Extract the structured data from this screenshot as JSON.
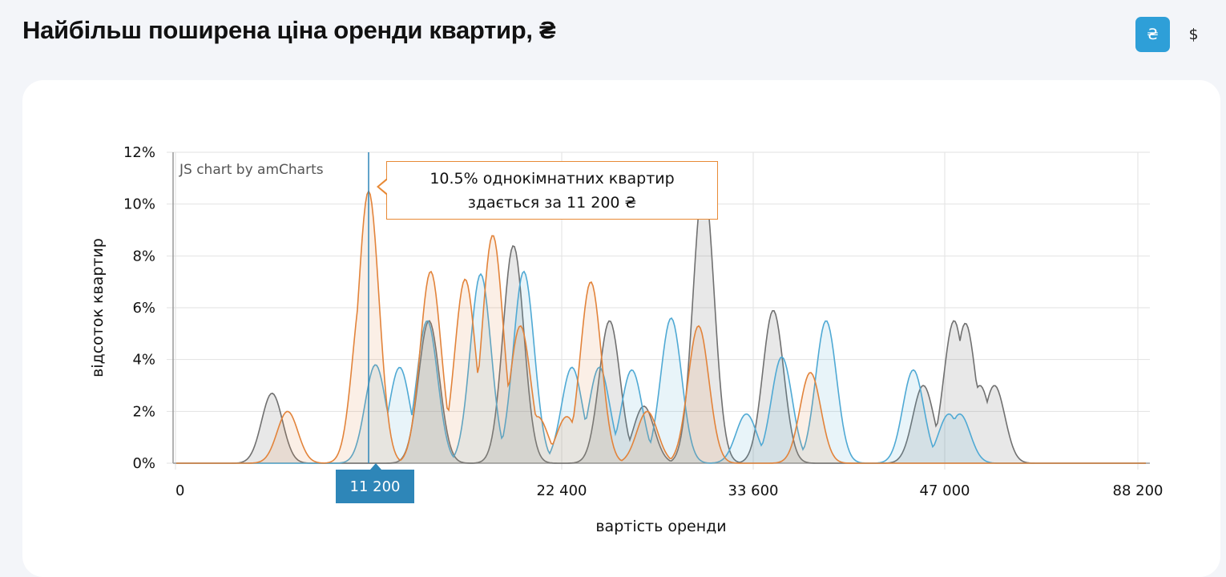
{
  "header": {
    "title": "Найбільш поширена ціна оренди квартир, ₴"
  },
  "currency": {
    "uah_label": "₴",
    "usd_label": "$",
    "active": "uah",
    "active_color": "#2e9fd8"
  },
  "chart_data": {
    "type": "area",
    "title": "",
    "credit": "JS chart by amCharts",
    "xlabel": "вартість оренди",
    "ylabel": "відсоток квартир",
    "x_tick_labels": [
      "0",
      "22 400",
      "33 600",
      "47 000",
      "88 200"
    ],
    "y_ticks": [
      0,
      2,
      4,
      6,
      8,
      10,
      12
    ],
    "y_tick_labels": [
      "0%",
      "2%",
      "4%",
      "6%",
      "8%",
      "10%",
      "12%"
    ],
    "ylim": [
      0,
      12
    ],
    "x_scale": "piecewise",
    "grid": true,
    "series": [
      {
        "color": "#e2833a",
        "peaks": [
          [
            6500,
            2.0
          ],
          [
            10900,
            7.0
          ],
          [
            11200,
            10.5
          ],
          [
            14800,
            7.4
          ],
          [
            16800,
            7.1
          ],
          [
            18400,
            8.8
          ],
          [
            20000,
            5.3
          ],
          [
            21000,
            1.8
          ],
          [
            22700,
            1.8
          ],
          [
            24100,
            7.0
          ],
          [
            27400,
            2.0
          ],
          [
            30400,
            5.3
          ],
          [
            37600,
            3.5
          ]
        ]
      },
      {
        "color": "#4fa9d4",
        "peaks": [
          [
            11600,
            3.8
          ],
          [
            13000,
            3.7
          ],
          [
            14600,
            5.5
          ],
          [
            17700,
            7.3
          ],
          [
            20200,
            7.4
          ],
          [
            23000,
            3.7
          ],
          [
            24600,
            3.7
          ],
          [
            26500,
            3.6
          ],
          [
            28800,
            5.6
          ],
          [
            33200,
            1.9
          ],
          [
            35600,
            4.1
          ],
          [
            38700,
            5.5
          ],
          [
            44800,
            3.6
          ],
          [
            47900,
            1.9
          ],
          [
            50200,
            1.9
          ]
        ]
      },
      {
        "color": "#707070",
        "peaks": [
          [
            5600,
            2.7
          ],
          [
            14700,
            5.5
          ],
          [
            19600,
            8.4
          ],
          [
            25200,
            5.5
          ],
          [
            27200,
            2.2
          ],
          [
            30700,
            10.9
          ],
          [
            35000,
            5.9
          ],
          [
            45500,
            3.0
          ],
          [
            49000,
            5.5
          ],
          [
            51400,
            5.4
          ],
          [
            54500,
            3.0
          ],
          [
            57600,
            3.0
          ]
        ]
      }
    ],
    "cursor": {
      "x": 11200,
      "x_label": "11 200",
      "tooltip_line1": "10.5% однокімнатних квартир",
      "tooltip_line2": "здається за 11 200 ₴"
    }
  }
}
